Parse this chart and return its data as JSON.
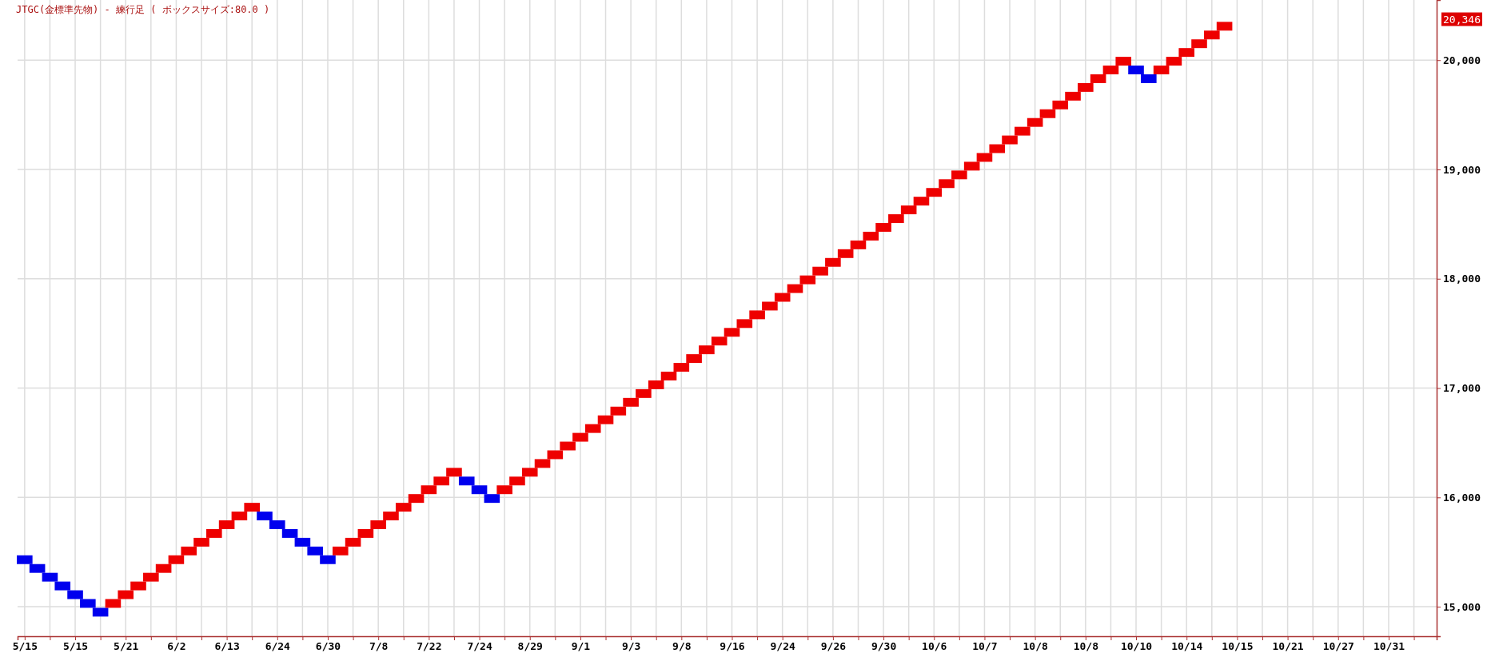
{
  "chart_data": {
    "type": "bar",
    "title": "JTGC(金標準先物) - 練行足 ( ボックスサイズ:80.0 )",
    "categories": [
      "5/15",
      null,
      null,
      null,
      "5/15",
      null,
      null,
      null,
      "5/21",
      null,
      null,
      null,
      "6/2",
      null,
      null,
      null,
      "6/13",
      null,
      null,
      null,
      "6/24",
      null,
      null,
      null,
      "6/30",
      null,
      null,
      null,
      "7/8",
      null,
      null,
      null,
      "7/22",
      null,
      null,
      null,
      "7/24",
      null,
      null,
      null,
      "8/29",
      null,
      null,
      null,
      "9/1",
      null,
      null,
      null,
      "9/3",
      null,
      null,
      null,
      "9/8",
      null,
      null,
      null,
      "9/16",
      null,
      null,
      null,
      "9/24",
      null,
      null,
      null,
      "9/26",
      null,
      null,
      null,
      "9/30",
      null,
      null,
      null,
      "10/6",
      null,
      null,
      null,
      "10/7",
      null,
      null,
      null,
      "10/8",
      null,
      null,
      null,
      "10/8",
      null,
      null,
      null,
      "10/10",
      null,
      null,
      null,
      "10/14",
      null,
      null,
      null,
      "10/15",
      null,
      null,
      null,
      "10/21",
      null,
      null,
      null,
      "10/27",
      null,
      null,
      null,
      "10/31",
      null,
      null,
      null
    ],
    "base": [
      15470,
      15390,
      15310,
      15230,
      15150,
      15070,
      14990,
      14990,
      15070,
      15150,
      15230,
      15310,
      15390,
      15470,
      15550,
      15630,
      15710,
      15790,
      15870,
      15870,
      15790,
      15710,
      15630,
      15550,
      15470,
      15470,
      15550,
      15630,
      15710,
      15790,
      15870,
      15950,
      16030,
      16110,
      16190,
      16190,
      16110,
      16030,
      16030,
      16110,
      16190,
      16270,
      16350,
      16430,
      16510,
      16590,
      16670,
      16750,
      16830,
      16910,
      16990,
      17070,
      17150,
      17230,
      17310,
      17390,
      17470,
      17550,
      17630,
      17710,
      17790,
      17870,
      17950,
      18030,
      18110,
      18190,
      18270,
      18350,
      18430,
      18510,
      18590,
      18670,
      18750,
      18830,
      18910,
      18990,
      19070,
      19150,
      19230,
      19310,
      19390,
      19470,
      19550,
      19630,
      19710,
      19790,
      19870,
      19950,
      19950,
      19870,
      19870,
      19950,
      20030,
      20110,
      20190,
      20270,
      null,
      null,
      null,
      null,
      null,
      null,
      null,
      null,
      null,
      null,
      null,
      null,
      null,
      null,
      null,
      null
    ],
    "values": [
      -80,
      -80,
      -80,
      -80,
      -80,
      -80,
      -80,
      80,
      80,
      80,
      80,
      80,
      80,
      80,
      80,
      80,
      80,
      80,
      80,
      -80,
      -80,
      -80,
      -80,
      -80,
      -80,
      80,
      80,
      80,
      80,
      80,
      80,
      80,
      80,
      80,
      80,
      -80,
      -80,
      -80,
      80,
      80,
      80,
      80,
      80,
      80,
      80,
      80,
      80,
      80,
      80,
      80,
      80,
      80,
      80,
      80,
      80,
      80,
      80,
      80,
      80,
      80,
      80,
      80,
      80,
      80,
      80,
      80,
      80,
      80,
      80,
      80,
      80,
      80,
      80,
      80,
      80,
      80,
      80,
      80,
      80,
      80,
      80,
      80,
      80,
      80,
      80,
      80,
      80,
      80,
      -80,
      -80,
      80,
      80,
      80,
      80,
      80,
      80,
      null,
      null,
      null,
      null,
      null,
      null,
      null,
      null,
      null,
      null,
      null,
      null,
      null,
      null,
      null,
      null
    ],
    "colors": [
      "#0000ee",
      "#0000ee",
      "#0000ee",
      "#0000ee",
      "#0000ee",
      "#0000ee",
      "#0000ee",
      "#ee0000",
      "#ee0000",
      "#ee0000",
      "#ee0000",
      "#ee0000",
      "#ee0000",
      "#ee0000",
      "#ee0000",
      "#ee0000",
      "#ee0000",
      "#ee0000",
      "#ee0000",
      "#0000ee",
      "#0000ee",
      "#0000ee",
      "#0000ee",
      "#0000ee",
      "#0000ee",
      "#ee0000",
      "#ee0000",
      "#ee0000",
      "#ee0000",
      "#ee0000",
      "#ee0000",
      "#ee0000",
      "#ee0000",
      "#ee0000",
      "#ee0000",
      "#0000ee",
      "#0000ee",
      "#0000ee",
      "#ee0000",
      "#ee0000",
      "#ee0000",
      "#ee0000",
      "#ee0000",
      "#ee0000",
      "#ee0000",
      "#ee0000",
      "#ee0000",
      "#ee0000",
      "#ee0000",
      "#ee0000",
      "#ee0000",
      "#ee0000",
      "#ee0000",
      "#ee0000",
      "#ee0000",
      "#ee0000",
      "#ee0000",
      "#ee0000",
      "#ee0000",
      "#ee0000",
      "#ee0000",
      "#ee0000",
      "#ee0000",
      "#ee0000",
      "#ee0000",
      "#ee0000",
      "#ee0000",
      "#ee0000",
      "#ee0000",
      "#ee0000",
      "#ee0000",
      "#ee0000",
      "#ee0000",
      "#ee0000",
      "#ee0000",
      "#ee0000",
      "#ee0000",
      "#ee0000",
      "#ee0000",
      "#ee0000",
      "#ee0000",
      "#ee0000",
      "#ee0000",
      "#ee0000",
      "#ee0000",
      "#ee0000",
      "#ee0000",
      "#ee0000",
      "#0000ee",
      "#0000ee",
      "#ee0000",
      "#ee0000",
      "#ee0000",
      "#ee0000",
      "#ee0000",
      "#ee0000",
      null,
      null,
      null,
      null,
      null,
      null,
      null,
      null,
      null,
      null,
      null,
      null,
      null,
      null,
      null,
      null
    ],
    "ylim": [
      14730,
      20550
    ],
    "yticks": [
      {
        "value": 15000,
        "label": "15,000"
      },
      {
        "value": 16000,
        "label": "16,000"
      },
      {
        "value": 17000,
        "label": "17,000"
      },
      {
        "value": 18000,
        "label": "18,000"
      },
      {
        "value": 19000,
        "label": "19,000"
      },
      {
        "value": 20000,
        "label": "20,000"
      }
    ],
    "annotations": [
      "20,346"
    ],
    "grid": true
  }
}
